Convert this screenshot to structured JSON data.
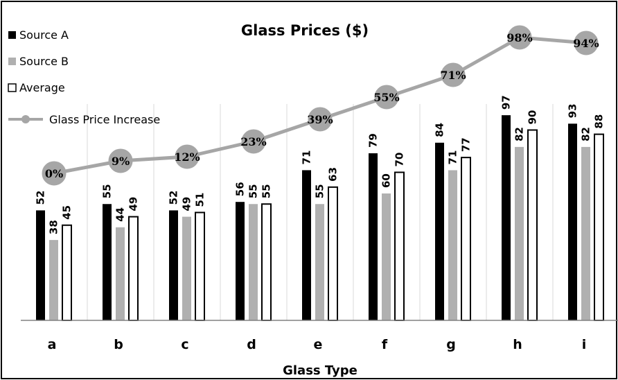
{
  "chart_data": {
    "type": "bar",
    "title": "Glass Prices ($)",
    "xlabel": "Glass Type",
    "ylabel": "",
    "ylim": [
      0,
      100
    ],
    "categories": [
      "a",
      "b",
      "c",
      "d",
      "e",
      "f",
      "g",
      "h",
      "i"
    ],
    "series": [
      {
        "name": "Source A",
        "type": "bar",
        "color": "#000000",
        "values": [
          52,
          55,
          52,
          56,
          71,
          79,
          84,
          97,
          93
        ]
      },
      {
        "name": "Source B",
        "type": "bar",
        "color": "#b0b0b0",
        "values": [
          38,
          44,
          49,
          55,
          55,
          60,
          71,
          82,
          82
        ]
      },
      {
        "name": "Average",
        "type": "bar",
        "color": "#ffffff",
        "values": [
          45,
          49,
          51,
          55,
          63,
          70,
          77,
          90,
          88
        ]
      },
      {
        "name": "Glass Price Increase",
        "type": "line",
        "color": "#a6a6a6",
        "values": [
          0,
          9,
          12,
          23,
          39,
          55,
          71,
          98,
          94
        ],
        "labels": [
          "0%",
          "9%",
          "12%",
          "23%",
          "39%",
          "55%",
          "71%",
          "98%",
          "94%"
        ]
      }
    ],
    "grid": "vertical",
    "legend_position": "top-left"
  }
}
